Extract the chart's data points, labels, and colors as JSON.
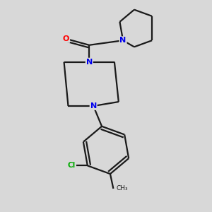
{
  "background_color": "#d8d8d8",
  "bond_color": "#1a1a1a",
  "N_color": "#0000ee",
  "O_color": "#ff0000",
  "Cl_color": "#00aa00",
  "line_width": 1.6,
  "font_size_N": 8,
  "font_size_O": 8,
  "font_size_Cl": 7.5,
  "fig_size": [
    3.0,
    3.0
  ],
  "dpi": 100,
  "xlim": [
    0,
    10
  ],
  "ylim": [
    0,
    10
  ]
}
